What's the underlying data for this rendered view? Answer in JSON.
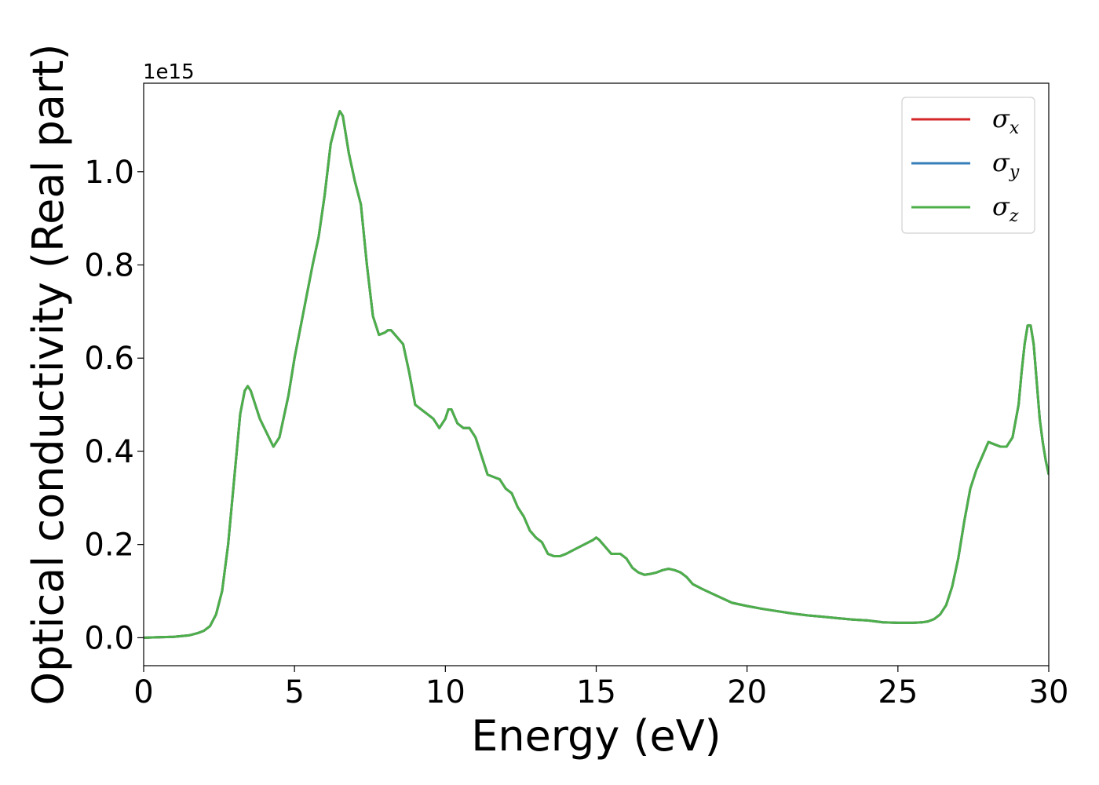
{
  "chart_data": {
    "type": "line",
    "xlabel": "Energy (eV)",
    "ylabel": "Optical conductivity (Real part)",
    "y_offset_label": "1e15",
    "xlim": [
      0,
      30
    ],
    "ylim": [
      -0.06,
      1.19
    ],
    "xticks": [
      0,
      5,
      10,
      15,
      20,
      25,
      30
    ],
    "yticks": [
      0.0,
      0.2,
      0.4,
      0.6,
      0.8,
      1.0
    ],
    "ytick_labels": [
      "0.0",
      "0.2",
      "0.4",
      "0.6",
      "0.8",
      "1.0"
    ],
    "grid": false,
    "legend_position": "top-right",
    "x": [
      0,
      0.5,
      1,
      1.5,
      1.8,
      2,
      2.2,
      2.4,
      2.6,
      2.8,
      3.0,
      3.2,
      3.35,
      3.45,
      3.55,
      3.7,
      3.85,
      4.0,
      4.15,
      4.3,
      4.5,
      4.8,
      5.0,
      5.3,
      5.6,
      5.8,
      6.0,
      6.2,
      6.4,
      6.5,
      6.6,
      6.8,
      7.0,
      7.2,
      7.4,
      7.6,
      7.8,
      8.0,
      8.1,
      8.2,
      8.4,
      8.6,
      8.8,
      9.0,
      9.2,
      9.4,
      9.6,
      9.8,
      10.0,
      10.1,
      10.2,
      10.4,
      10.6,
      10.8,
      11.0,
      11.2,
      11.4,
      11.6,
      11.8,
      12.0,
      12.2,
      12.4,
      12.6,
      12.8,
      13.0,
      13.2,
      13.4,
      13.6,
      13.8,
      14.0,
      14.3,
      14.6,
      14.9,
      15.0,
      15.1,
      15.3,
      15.5,
      15.8,
      16.0,
      16.2,
      16.4,
      16.6,
      16.8,
      17.0,
      17.2,
      17.4,
      17.6,
      17.8,
      18.0,
      18.2,
      18.5,
      19.0,
      19.5,
      20.0,
      20.5,
      21.0,
      21.5,
      22.0,
      22.5,
      23.0,
      23.5,
      24.0,
      24.5,
      25.0,
      25.5,
      25.8,
      26.0,
      26.2,
      26.4,
      26.6,
      26.8,
      27.0,
      27.2,
      27.4,
      27.6,
      27.8,
      28.0,
      28.2,
      28.4,
      28.6,
      28.8,
      29.0,
      29.1,
      29.2,
      29.3,
      29.4,
      29.5,
      29.6,
      29.7,
      29.8,
      29.9,
      30.0
    ],
    "series": [
      {
        "name": "σx",
        "color": "#d62728",
        "values": [
          0.0,
          0.001,
          0.002,
          0.005,
          0.01,
          0.015,
          0.025,
          0.05,
          0.1,
          0.2,
          0.34,
          0.48,
          0.53,
          0.54,
          0.53,
          0.5,
          0.47,
          0.45,
          0.43,
          0.41,
          0.43,
          0.52,
          0.6,
          0.7,
          0.8,
          0.86,
          0.95,
          1.06,
          1.11,
          1.13,
          1.12,
          1.04,
          0.98,
          0.93,
          0.8,
          0.69,
          0.65,
          0.655,
          0.66,
          0.66,
          0.645,
          0.63,
          0.57,
          0.5,
          0.49,
          0.48,
          0.47,
          0.45,
          0.47,
          0.49,
          0.49,
          0.46,
          0.45,
          0.45,
          0.43,
          0.39,
          0.35,
          0.345,
          0.34,
          0.32,
          0.31,
          0.28,
          0.26,
          0.23,
          0.215,
          0.205,
          0.18,
          0.175,
          0.175,
          0.18,
          0.19,
          0.2,
          0.21,
          0.215,
          0.21,
          0.195,
          0.18,
          0.18,
          0.17,
          0.15,
          0.14,
          0.135,
          0.137,
          0.14,
          0.145,
          0.148,
          0.145,
          0.14,
          0.13,
          0.115,
          0.105,
          0.09,
          0.075,
          0.068,
          0.062,
          0.057,
          0.052,
          0.048,
          0.045,
          0.042,
          0.039,
          0.037,
          0.033,
          0.032,
          0.032,
          0.033,
          0.035,
          0.04,
          0.05,
          0.07,
          0.11,
          0.17,
          0.25,
          0.32,
          0.36,
          0.39,
          0.42,
          0.415,
          0.41,
          0.41,
          0.43,
          0.5,
          0.57,
          0.63,
          0.67,
          0.67,
          0.63,
          0.55,
          0.47,
          0.42,
          0.38,
          0.35
        ]
      },
      {
        "name": "σy",
        "color": "#377eb8",
        "values": [
          0.0,
          0.001,
          0.002,
          0.005,
          0.01,
          0.015,
          0.025,
          0.05,
          0.1,
          0.2,
          0.34,
          0.48,
          0.53,
          0.54,
          0.53,
          0.5,
          0.47,
          0.45,
          0.43,
          0.41,
          0.43,
          0.52,
          0.6,
          0.7,
          0.8,
          0.86,
          0.95,
          1.06,
          1.11,
          1.13,
          1.12,
          1.04,
          0.98,
          0.93,
          0.8,
          0.69,
          0.65,
          0.655,
          0.66,
          0.66,
          0.645,
          0.63,
          0.57,
          0.5,
          0.49,
          0.48,
          0.47,
          0.45,
          0.47,
          0.49,
          0.49,
          0.46,
          0.45,
          0.45,
          0.43,
          0.39,
          0.35,
          0.345,
          0.34,
          0.32,
          0.31,
          0.28,
          0.26,
          0.23,
          0.215,
          0.205,
          0.18,
          0.175,
          0.175,
          0.18,
          0.19,
          0.2,
          0.21,
          0.215,
          0.21,
          0.195,
          0.18,
          0.18,
          0.17,
          0.15,
          0.14,
          0.135,
          0.137,
          0.14,
          0.145,
          0.148,
          0.145,
          0.14,
          0.13,
          0.115,
          0.105,
          0.09,
          0.075,
          0.068,
          0.062,
          0.057,
          0.052,
          0.048,
          0.045,
          0.042,
          0.039,
          0.037,
          0.033,
          0.032,
          0.032,
          0.033,
          0.035,
          0.04,
          0.05,
          0.07,
          0.11,
          0.17,
          0.25,
          0.32,
          0.36,
          0.39,
          0.42,
          0.415,
          0.41,
          0.41,
          0.43,
          0.5,
          0.57,
          0.63,
          0.67,
          0.67,
          0.63,
          0.55,
          0.47,
          0.42,
          0.38,
          0.35
        ]
      },
      {
        "name": "σz",
        "color": "#4daf4a",
        "values": [
          0.0,
          0.001,
          0.002,
          0.005,
          0.01,
          0.015,
          0.025,
          0.05,
          0.1,
          0.2,
          0.34,
          0.48,
          0.53,
          0.54,
          0.53,
          0.5,
          0.47,
          0.45,
          0.43,
          0.41,
          0.43,
          0.52,
          0.6,
          0.7,
          0.8,
          0.86,
          0.95,
          1.06,
          1.11,
          1.13,
          1.12,
          1.04,
          0.98,
          0.93,
          0.8,
          0.69,
          0.65,
          0.655,
          0.66,
          0.66,
          0.645,
          0.63,
          0.57,
          0.5,
          0.49,
          0.48,
          0.47,
          0.45,
          0.47,
          0.49,
          0.49,
          0.46,
          0.45,
          0.45,
          0.43,
          0.39,
          0.35,
          0.345,
          0.34,
          0.32,
          0.31,
          0.28,
          0.26,
          0.23,
          0.215,
          0.205,
          0.18,
          0.175,
          0.175,
          0.18,
          0.19,
          0.2,
          0.21,
          0.215,
          0.21,
          0.195,
          0.18,
          0.18,
          0.17,
          0.15,
          0.14,
          0.135,
          0.137,
          0.14,
          0.145,
          0.148,
          0.145,
          0.14,
          0.13,
          0.115,
          0.105,
          0.09,
          0.075,
          0.068,
          0.062,
          0.057,
          0.052,
          0.048,
          0.045,
          0.042,
          0.039,
          0.037,
          0.033,
          0.032,
          0.032,
          0.033,
          0.035,
          0.04,
          0.05,
          0.07,
          0.11,
          0.17,
          0.25,
          0.32,
          0.36,
          0.39,
          0.42,
          0.415,
          0.41,
          0.41,
          0.43,
          0.5,
          0.57,
          0.63,
          0.67,
          0.67,
          0.63,
          0.55,
          0.47,
          0.42,
          0.38,
          0.35
        ]
      }
    ]
  }
}
